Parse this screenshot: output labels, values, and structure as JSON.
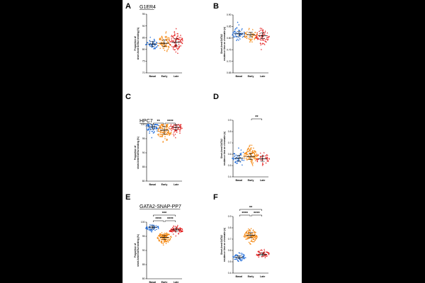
{
  "figure": {
    "conditions": [
      "Basal",
      "Early",
      "Late"
    ],
    "condition_colors": [
      "#1565d8",
      "#f5870f",
      "#e52222"
    ],
    "panels": [
      {
        "label": "A",
        "title": "G1ER4",
        "title_underline": true,
        "ylabel_lines": [
          "Proportion of",
          "short-lived GATA2 binding (%)"
        ],
        "yticks": [
          "70",
          "75",
          "80",
          "85",
          "90",
          "95"
        ],
        "ylim": [
          70,
          95
        ],
        "significance": [],
        "groups": [
          {
            "name": "Basal",
            "center": 82.5,
            "spread": 2.2,
            "n": 45,
            "median": 82.3
          },
          {
            "name": "Early",
            "center": 82.8,
            "spread": 3.0,
            "n": 80,
            "median": 82.6
          },
          {
            "name": "Late",
            "center": 83.5,
            "spread": 3.5,
            "n": 95,
            "median": 83.0
          }
        ]
      },
      {
        "label": "B",
        "title": "",
        "title_underline": false,
        "ylabel_lines": [
          "Short-lived GATA2",
          "residence time on chromatin (s)"
        ],
        "yticks": [
          "0.65",
          "0.70",
          "0.75",
          "0.80",
          "0.85",
          "0.90"
        ],
        "ylim": [
          0.65,
          0.9
        ],
        "significance": [],
        "groups": [
          {
            "name": "Basal",
            "center": 0.818,
            "spread": 0.022,
            "n": 50,
            "median": 0.818
          },
          {
            "name": "Early",
            "center": 0.815,
            "spread": 0.022,
            "n": 55,
            "median": 0.815
          },
          {
            "name": "Late",
            "center": 0.808,
            "spread": 0.028,
            "n": 70,
            "median": 0.81
          }
        ]
      },
      {
        "label": "C",
        "title": "HPC7",
        "title_underline": true,
        "ylabel_lines": [
          "Proportion of",
          "short-lived GATA2 binding (%)"
        ],
        "yticks": [
          "80",
          "85",
          "90",
          "95",
          "100"
        ],
        "ylim": [
          80,
          100
        ],
        "significance": [
          {
            "from": 0,
            "to": 1,
            "label": "**",
            "level": 0
          },
          {
            "from": 1,
            "to": 2,
            "label": "****",
            "level": 0
          }
        ],
        "groups": [
          {
            "name": "Basal",
            "center": 99.0,
            "spread": 1.8,
            "n": 60,
            "median": 99.2
          },
          {
            "name": "Early",
            "center": 97.5,
            "spread": 3.0,
            "n": 110,
            "median": 98.0
          },
          {
            "name": "Late",
            "center": 98.8,
            "spread": 2.0,
            "n": 60,
            "median": 99.0
          }
        ]
      },
      {
        "label": "D",
        "title": "",
        "title_underline": false,
        "ylabel_lines": [
          "Short-lived GATA2",
          "residence time on chromatin (s)"
        ],
        "yticks": [
          "0.4",
          "0.5",
          "0.6",
          "0.7",
          "0.8",
          "0.9"
        ],
        "ylim": [
          0.4,
          0.9
        ],
        "significance": [
          {
            "from": 1,
            "to": 2,
            "label": "**",
            "level": 0
          }
        ],
        "groups": [
          {
            "name": "Basal",
            "center": 0.57,
            "spread": 0.06,
            "n": 45,
            "median": 0.565
          },
          {
            "name": "Early",
            "center": 0.585,
            "spread": 0.06,
            "n": 110,
            "median": 0.58
          },
          {
            "name": "Late",
            "center": 0.565,
            "spread": 0.05,
            "n": 40,
            "median": 0.56
          }
        ]
      },
      {
        "label": "E",
        "title": "GATA2-SNAP-PP7",
        "title_underline": true,
        "ylabel_lines": [
          "Proportion of",
          "short-lived GATA2 binding (%)"
        ],
        "yticks": [
          "80",
          "85",
          "90",
          "95",
          "100"
        ],
        "ylim": [
          80,
          100
        ],
        "significance": [
          {
            "from": 0,
            "to": 1,
            "label": "****",
            "level": 0
          },
          {
            "from": 1,
            "to": 2,
            "label": "****",
            "level": 0
          },
          {
            "from": 0,
            "to": 2,
            "label": "***",
            "level": 1
          }
        ],
        "groups": [
          {
            "name": "Basal",
            "center": 98.0,
            "spread": 1.1,
            "n": 45,
            "median": 98.2
          },
          {
            "name": "Early",
            "center": 94.5,
            "spread": 1.7,
            "n": 120,
            "median": 94.6
          },
          {
            "name": "Late",
            "center": 97.2,
            "spread": 1.2,
            "n": 70,
            "median": 97.3
          }
        ]
      },
      {
        "label": "F",
        "title": "",
        "title_underline": false,
        "ylabel_lines": [
          "Short-lived GATA2",
          "residence time on chromatin (s)"
        ],
        "yticks": [
          "0.4",
          "0.5",
          "0.6",
          "0.7",
          "0.8",
          "0.9"
        ],
        "ylim": [
          0.4,
          0.9
        ],
        "significance": [
          {
            "from": 0,
            "to": 1,
            "label": "****",
            "level": 0
          },
          {
            "from": 1,
            "to": 2,
            "label": "****",
            "level": 0
          },
          {
            "from": 0,
            "to": 2,
            "label": "**",
            "level": 1
          }
        ],
        "groups": [
          {
            "name": "Basal",
            "center": 0.545,
            "spread": 0.03,
            "n": 45,
            "median": 0.54
          },
          {
            "name": "Early",
            "center": 0.73,
            "spread": 0.05,
            "n": 110,
            "median": 0.735
          },
          {
            "name": "Late",
            "center": 0.57,
            "spread": 0.03,
            "n": 55,
            "median": 0.565
          }
        ]
      }
    ]
  }
}
